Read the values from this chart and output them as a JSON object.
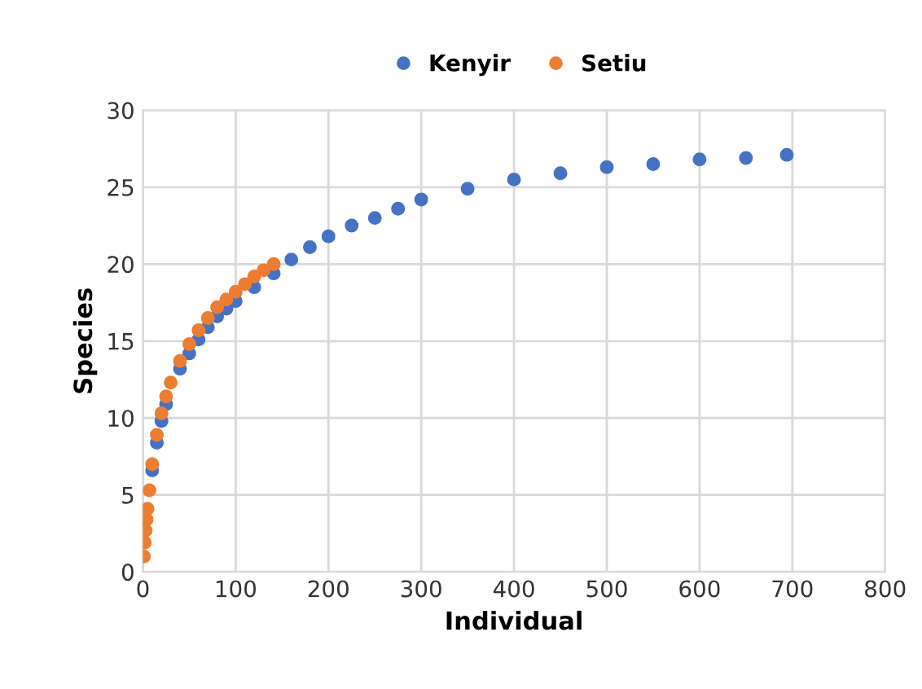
{
  "chart_data": {
    "type": "scatter",
    "xlabel": "Individual",
    "ylabel": "Species",
    "xlim": [
      0,
      800
    ],
    "xticks": [
      0,
      100,
      200,
      300,
      400,
      500,
      600,
      700,
      800
    ],
    "ylim": [
      0,
      30
    ],
    "yticks": [
      0,
      5,
      10,
      15,
      20,
      25,
      30
    ],
    "grid": true,
    "legend": "top",
    "marker": "circle",
    "series": [
      {
        "name": "Kenyir",
        "color": "#4472c4",
        "x": [
          10,
          15,
          20,
          25,
          40,
          50,
          60,
          70,
          80,
          90,
          100,
          120,
          141,
          160,
          180,
          200,
          225,
          250,
          275,
          300,
          350,
          400,
          450,
          500,
          550,
          600,
          650,
          694
        ],
        "values": [
          6.6,
          8.4,
          9.8,
          10.9,
          13.2,
          14.2,
          15.1,
          15.9,
          16.6,
          17.1,
          17.6,
          18.5,
          19.4,
          20.3,
          21.1,
          21.8,
          22.5,
          23.0,
          23.6,
          24.2,
          24.9,
          25.5,
          25.9,
          26.3,
          26.5,
          26.8,
          26.9,
          27.1
        ]
      },
      {
        "name": "Setiu",
        "color": "#ed7d31",
        "x": [
          1,
          2,
          3,
          4,
          5,
          7,
          10,
          15,
          20,
          25,
          30,
          40,
          50,
          60,
          70,
          80,
          90,
          100,
          110,
          120,
          130,
          141
        ],
        "values": [
          1,
          1.9,
          2.7,
          3.4,
          4.1,
          5.3,
          7,
          8.9,
          10.3,
          11.4,
          12.3,
          13.7,
          14.8,
          15.7,
          16.5,
          17.2,
          17.7,
          18.2,
          18.7,
          19.2,
          19.6,
          20.0
        ]
      }
    ]
  }
}
